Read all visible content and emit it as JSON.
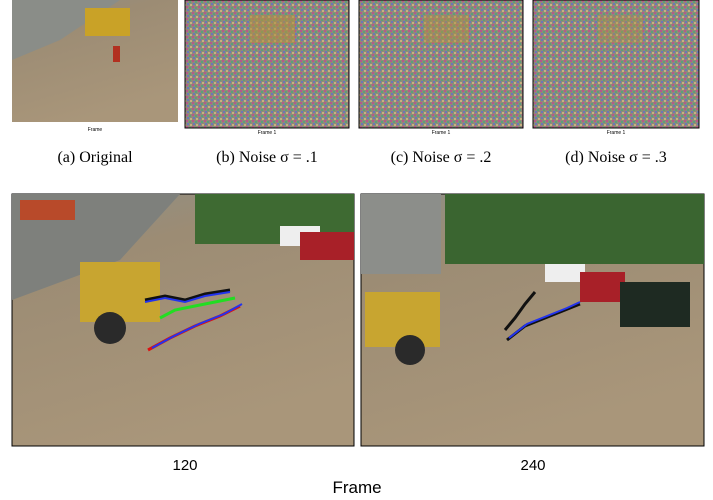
{
  "top_panels": [
    {
      "inner_label": "Frame",
      "caption": "(a)  Original"
    },
    {
      "inner_label": "Frame 1",
      "caption": "(b)  Noise σ = .1"
    },
    {
      "inner_label": "Frame 1",
      "caption": "(c)  Noise σ = .2"
    },
    {
      "inner_label": "Frame 1",
      "caption": "(d)  Noise σ = .3"
    }
  ],
  "bottom_panels": [
    {
      "label": "120"
    },
    {
      "label": "240"
    }
  ],
  "xlabel": "Frame"
}
